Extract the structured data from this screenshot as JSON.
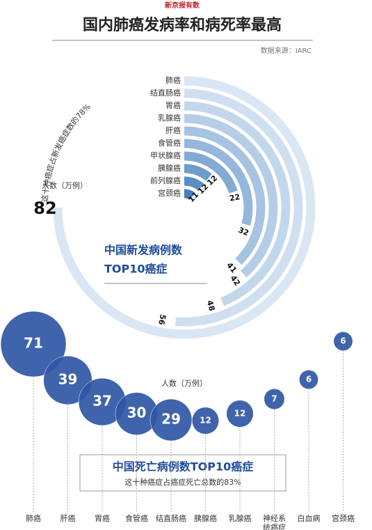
{
  "brand": "新京报有数",
  "title": "国内肺癌发病率和病死率最高",
  "source": "数据来源：IARC",
  "chart_data": [
    {
      "type": "radial-bar",
      "title": "中国新发病例数",
      "subtitle": "TOP10癌症",
      "unit_label": "人数（万例）",
      "annotation": "这十种癌症占新发癌症数的78%",
      "categories": [
        "肺癌",
        "结直肠癌",
        "胃癌",
        "乳腺癌",
        "肝癌",
        "食管癌",
        "甲状腺癌",
        "胰腺癌",
        "前列腺癌",
        "宫颈癌"
      ],
      "values": [
        82,
        56,
        48,
        42,
        41,
        32,
        22,
        12,
        12,
        11
      ],
      "colors": [
        "#d9e6f3",
        "#cfdff0",
        "#c3d7ec",
        "#b5cde7",
        "#a6c3e2",
        "#95b7dc",
        "#82aad5",
        "#6d9ccd",
        "#5a8dc5",
        "#457dbd"
      ]
    },
    {
      "type": "bubble",
      "title": "中国死亡病例数TOP10癌症",
      "unit_label": "人数（万例）",
      "annotation": "这十种癌症占癌症死亡总数的83%",
      "categories": [
        "肺癌",
        "肝癌",
        "胃癌",
        "食管癌",
        "结直肠癌",
        "胰腺癌",
        "乳腺癌",
        "神经系统癌症",
        "白血病",
        "宫颈癌"
      ],
      "values": [
        71,
        39,
        37,
        30,
        29,
        12,
        12,
        7,
        6,
        6
      ],
      "color": "#2f57a5"
    }
  ]
}
